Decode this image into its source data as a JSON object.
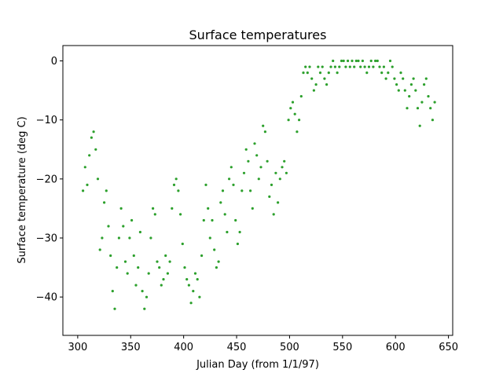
{
  "chart_data": {
    "type": "scatter",
    "title": "Surface temperatures",
    "xlabel": "Julian Day (from 1/1/97)",
    "ylabel": "Surface temperature (deg C)",
    "xlim": [
      286,
      654
    ],
    "ylim": [
      -46.5,
      2.6
    ],
    "xticks": [
      300,
      350,
      400,
      450,
      500,
      550,
      600,
      650
    ],
    "yticks": [
      -40,
      -30,
      -20,
      -10,
      0
    ],
    "grid": false,
    "legend": "none",
    "marker_color": "#2ca02c",
    "series": [
      {
        "x": [
          305,
          307,
          309,
          311,
          313,
          315,
          317,
          319,
          321,
          323,
          325,
          327,
          329,
          331,
          333,
          335,
          337,
          339,
          341,
          343,
          345,
          347,
          349,
          351,
          353,
          355,
          357,
          359,
          361,
          363,
          365,
          367,
          369,
          371,
          373,
          375,
          377,
          379,
          381,
          383,
          385,
          387,
          389,
          391,
          393,
          395,
          397,
          399,
          401,
          403,
          405,
          407,
          409,
          411,
          413,
          415,
          417,
          419,
          421,
          423,
          425,
          427,
          429,
          431,
          433,
          435,
          437,
          439,
          441,
          443,
          445,
          447,
          449,
          451,
          453,
          455,
          457,
          459,
          461,
          463,
          465,
          467,
          469,
          471,
          473,
          475,
          477,
          479,
          481,
          483,
          485,
          487,
          489,
          491,
          493,
          495,
          497,
          499,
          501,
          503,
          505,
          507,
          509,
          511,
          513,
          515,
          517,
          519,
          521,
          523,
          525,
          527,
          529,
          531,
          533,
          535,
          537,
          539,
          541,
          543,
          545,
          547,
          549,
          551,
          553,
          555,
          557,
          559,
          561,
          563,
          565,
          567,
          569,
          571,
          573,
          575,
          577,
          579,
          581,
          583,
          585,
          587,
          589,
          591,
          593,
          595,
          597,
          599,
          601,
          603,
          605,
          607,
          609,
          611,
          613,
          615,
          617,
          619,
          621,
          623,
          625,
          627,
          629,
          631,
          633,
          635,
          637
        ],
        "y": [
          -22,
          -18,
          -21,
          -16,
          -13,
          -12,
          -15,
          -20,
          -32,
          -30,
          -24,
          -22,
          -28,
          -33,
          -39,
          -42,
          -35,
          -30,
          -25,
          -28,
          -34,
          -36,
          -30,
          -27,
          -33,
          -38,
          -35,
          -29,
          -39,
          -42,
          -40,
          -36,
          -30,
          -25,
          -26,
          -34,
          -35,
          -38,
          -37,
          -33,
          -36,
          -34,
          -25,
          -21,
          -20,
          -22,
          -26,
          -31,
          -35,
          -37,
          -38,
          -41,
          -39,
          -36,
          -37,
          -40,
          -33,
          -27,
          -21,
          -25,
          -30,
          -27,
          -32,
          -35,
          -34,
          -24,
          -22,
          -26,
          -29,
          -20,
          -18,
          -21,
          -27,
          -31,
          -29,
          -22,
          -19,
          -15,
          -17,
          -22,
          -25,
          -14,
          -16,
          -20,
          -18,
          -11,
          -12,
          -17,
          -23,
          -21,
          -26,
          -19,
          -24,
          -20,
          -18,
          -17,
          -19,
          -10,
          -8,
          -7,
          -9,
          -12,
          -10,
          -6,
          -2,
          -1,
          -2,
          -1,
          -3,
          -5,
          -4,
          -1,
          -2,
          -1,
          -3,
          -4,
          -2,
          -1,
          0,
          -1,
          -2,
          -1,
          0,
          0,
          -1,
          0,
          -1,
          0,
          -1,
          0,
          0,
          -1,
          0,
          -1,
          -2,
          -1,
          0,
          -1,
          0,
          0,
          -1,
          -2,
          -1,
          -3,
          -2,
          0,
          -1,
          -3,
          -4,
          -5,
          -2,
          -3,
          -5,
          -8,
          -6,
          -4,
          -3,
          -5,
          -8,
          -11,
          -7,
          -4,
          -3,
          -6,
          -8,
          -10,
          -7
        ]
      }
    ]
  }
}
